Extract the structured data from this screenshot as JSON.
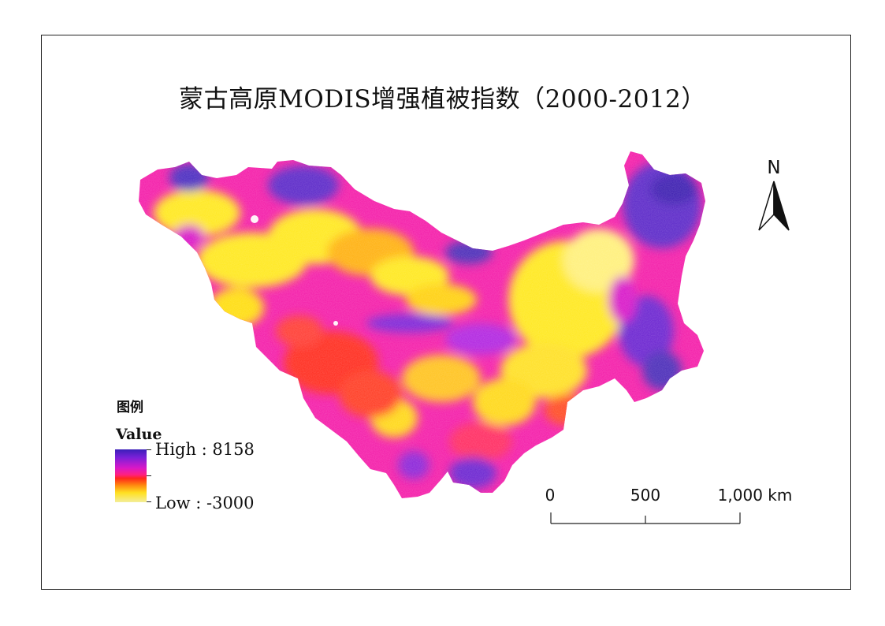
{
  "title": "蒙古高原MODIS增强植被指数（2000-2012）",
  "north_arrow": {
    "letter": "N",
    "icon": "north-arrow-icon"
  },
  "legend": {
    "title": "图例",
    "field": "Value",
    "high_label": "High : 8158",
    "low_label": "Low : -3000",
    "high_value": 8158,
    "low_value": -3000,
    "ramp_colors": [
      "#3a1fb8",
      "#7a20d8",
      "#d818c8",
      "#ff2080",
      "#ff2a1a",
      "#ff8a10",
      "#ffe020",
      "#f4ee9a"
    ]
  },
  "scale_bar": {
    "labels": [
      "0",
      "500",
      "1,000 km"
    ],
    "values_km": [
      0,
      500,
      1000
    ]
  },
  "map": {
    "region": "Mongolian Plateau",
    "palette": {
      "purple": "#5a23c8",
      "violet": "#b020e0",
      "magenta": "#ff14c8",
      "red": "#ff2a1a",
      "orange": "#ff7a10",
      "yellow": "#ffe81a",
      "pale": "#fff7a0"
    }
  }
}
